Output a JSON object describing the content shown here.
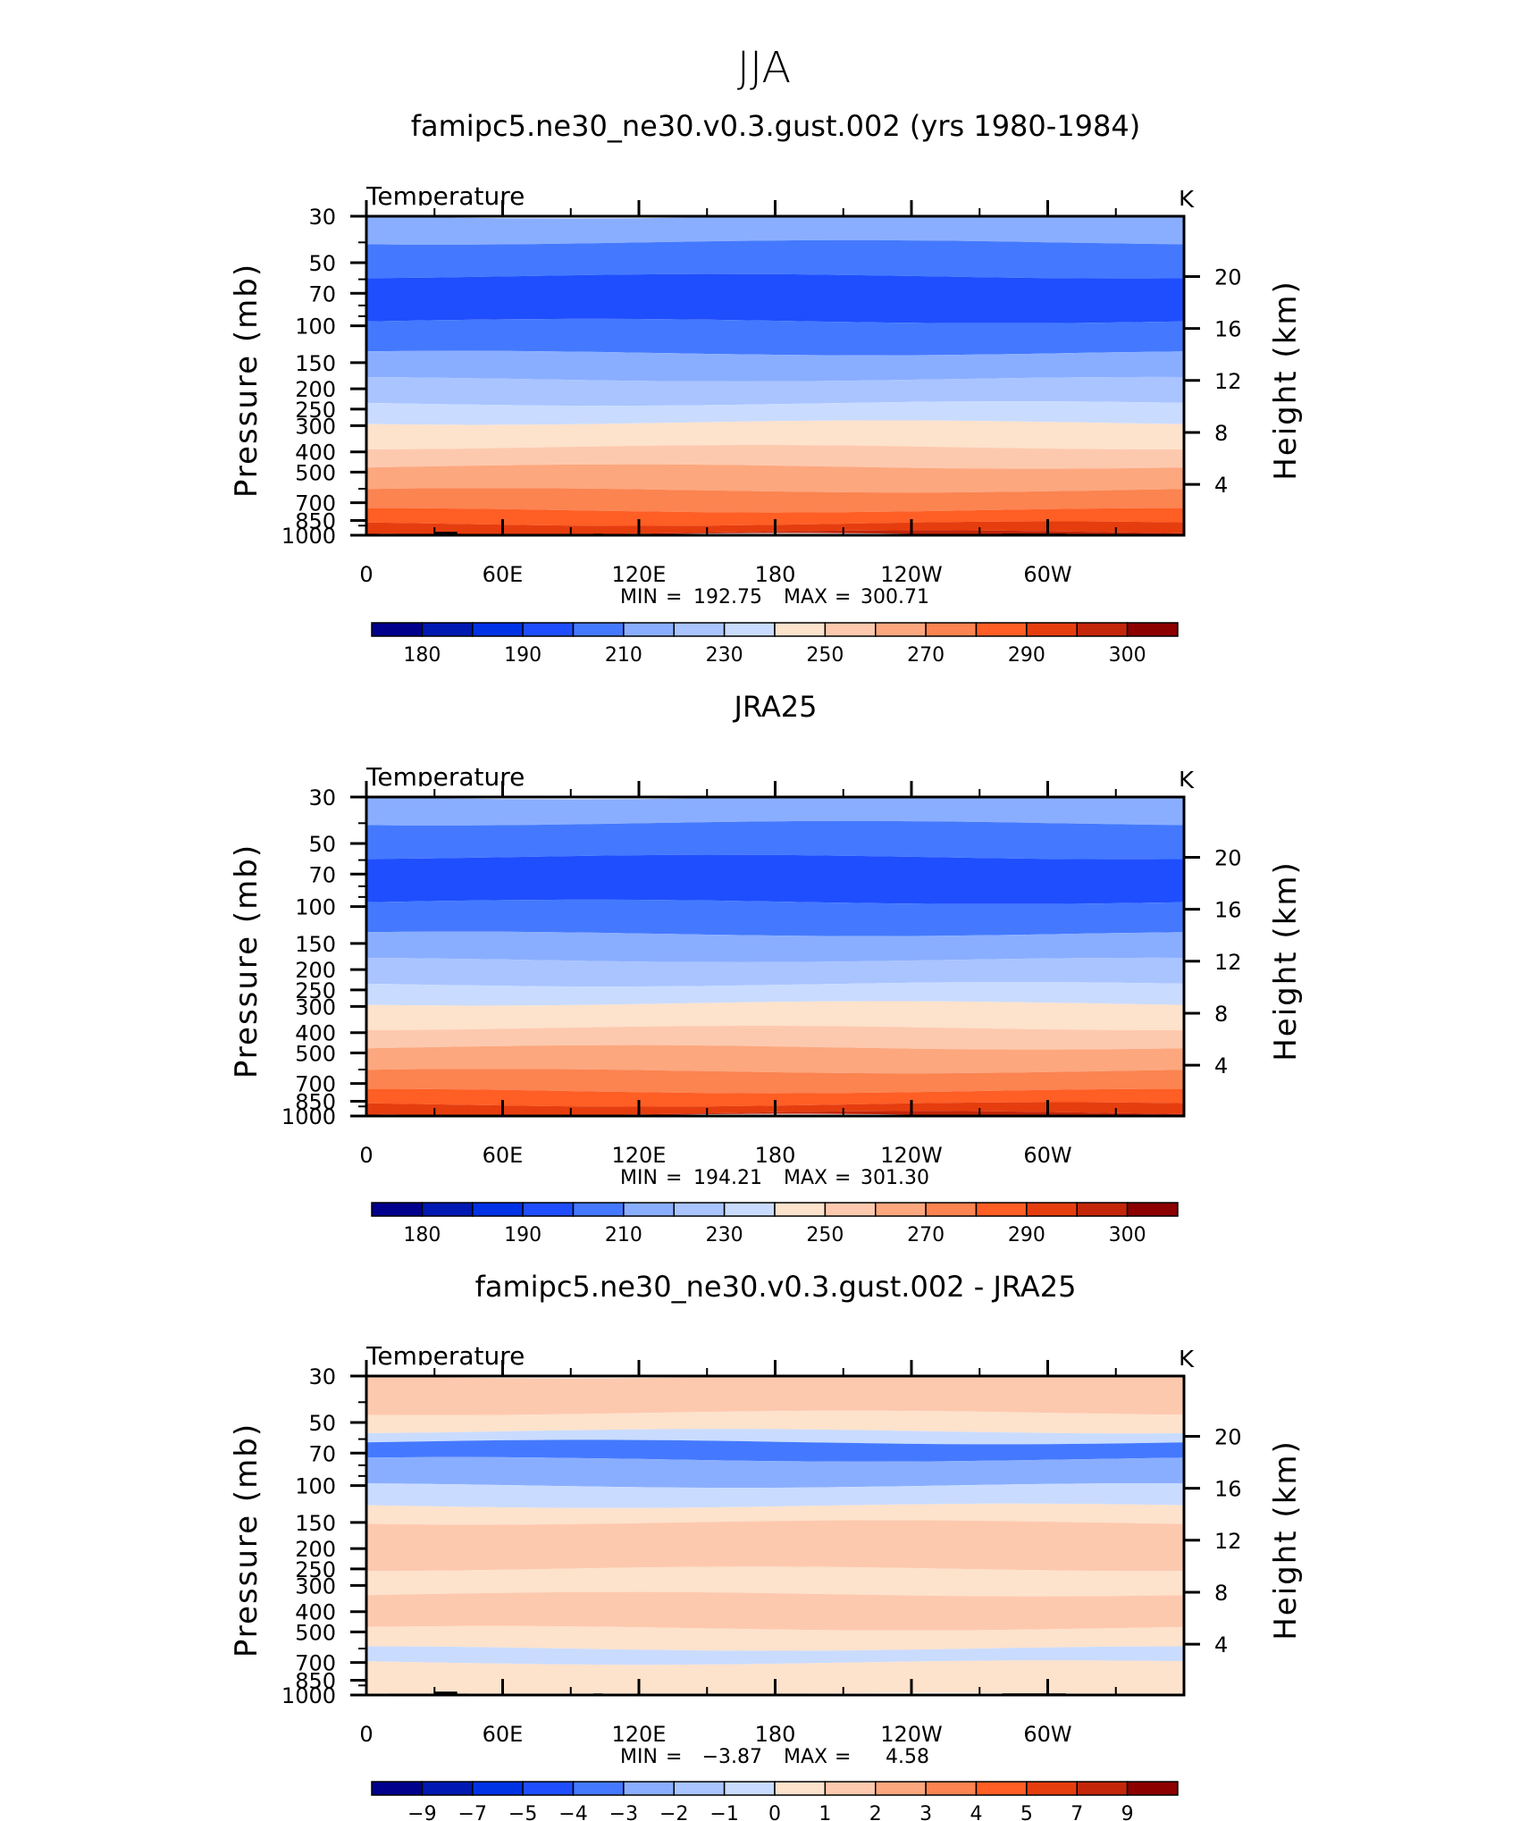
{
  "figure": {
    "title": "JJA"
  },
  "chart_data": [
    {
      "type": "contour",
      "title": "famipc5.ne30_ne30.v0.3.gust.002 (yrs 1980-1984)",
      "variable": "Temperature",
      "units": "K",
      "ylabel": "Pressure (mb)",
      "y2label": "Height (km)",
      "x_ticks": [
        "0",
        "60E",
        "120E",
        "180",
        "120W",
        "60W"
      ],
      "x_range": [
        0,
        360
      ],
      "pressure_ticks": [
        "30",
        "50",
        "70",
        "100",
        "150",
        "200",
        "250",
        "300",
        "400",
        "500",
        "700",
        "850",
        "1000"
      ],
      "height_ticks": [
        "20",
        "16",
        "12",
        "8",
        "4"
      ],
      "min_label": "MIN",
      "min_value": "192.75",
      "max_label": "MAX",
      "max_value": "300.71",
      "colorbar_labels": [
        "180",
        "190",
        "210",
        "230",
        "250",
        "270",
        "290",
        "300"
      ],
      "layer_colors": [
        "#8aaeff",
        "#4479ff",
        "#1f4eff",
        "#4479ff",
        "#8aaeff",
        "#a9c4ff",
        "#c9dcff",
        "#fde2cc",
        "#fdc9ae",
        "#fca77e",
        "#fb8451",
        "#ff5e24",
        "#e63d0f",
        "#c4260a"
      ],
      "layer_bounds_mb": [
        30,
        40,
        58,
        95,
        135,
        180,
        235,
        290,
        380,
        470,
        610,
        760,
        880,
        970,
        1000
      ]
    },
    {
      "type": "contour",
      "title": "JRA25",
      "variable": "Temperature",
      "units": "K",
      "ylabel": "Pressure (mb)",
      "y2label": "Height (km)",
      "x_ticks": [
        "0",
        "60E",
        "120E",
        "180",
        "120W",
        "60W"
      ],
      "x_range": [
        0,
        360
      ],
      "pressure_ticks": [
        "30",
        "50",
        "70",
        "100",
        "150",
        "200",
        "250",
        "300",
        "400",
        "500",
        "700",
        "850",
        "1000"
      ],
      "height_ticks": [
        "20",
        "16",
        "12",
        "8",
        "4"
      ],
      "min_label": "MIN",
      "min_value": "194.21",
      "max_label": "MAX",
      "max_value": "301.30",
      "colorbar_labels": [
        "180",
        "190",
        "210",
        "230",
        "250",
        "270",
        "290",
        "300"
      ],
      "layer_colors": [
        "#8aaeff",
        "#4479ff",
        "#1f4eff",
        "#4479ff",
        "#8aaeff",
        "#a9c4ff",
        "#c9dcff",
        "#fde2cc",
        "#fdc9ae",
        "#fca77e",
        "#fb8451",
        "#ff5e24",
        "#e63d0f",
        "#c4260a"
      ],
      "layer_bounds_mb": [
        30,
        40,
        58,
        95,
        135,
        180,
        235,
        290,
        380,
        470,
        610,
        760,
        880,
        970,
        1000
      ]
    },
    {
      "type": "contour",
      "title": "famipc5.ne30_ne30.v0.3.gust.002 - JRA25",
      "variable": "Temperature",
      "units": "K",
      "ylabel": "Pressure (mb)",
      "y2label": "Height (km)",
      "x_ticks": [
        "0",
        "60E",
        "120E",
        "180",
        "120W",
        "60W"
      ],
      "x_range": [
        0,
        360
      ],
      "pressure_ticks": [
        "30",
        "50",
        "70",
        "100",
        "150",
        "200",
        "250",
        "300",
        "400",
        "500",
        "700",
        "850",
        "1000"
      ],
      "height_ticks": [
        "20",
        "16",
        "12",
        "8",
        "4"
      ],
      "min_label": "MIN",
      "min_value": "−3.87",
      "max_label": "MAX",
      "max_value": "4.58",
      "colorbar_labels": [
        "−9",
        "−7",
        "−5",
        "−4",
        "−3",
        "−2",
        "−1",
        "0",
        "1",
        "2",
        "3",
        "4",
        "5",
        "7",
        "9"
      ],
      "layer_colors": [
        "#fdc9ae",
        "#fde2cc",
        "#c9dcff",
        "#4479ff",
        "#8aaeff",
        "#c9dcff",
        "#fde2cc",
        "#fdc9ae",
        "#fde2cc",
        "#fdc9ae",
        "#fde2cc",
        "#c9dcff",
        "#fde2cc"
      ],
      "layer_bounds_mb": [
        30,
        45,
        55,
        62,
        75,
        100,
        125,
        150,
        250,
        330,
        480,
        600,
        700,
        1000
      ]
    }
  ],
  "colorbar_colors": [
    "#00008c",
    "#0019b2",
    "#0033e6",
    "#1f4eff",
    "#4479ff",
    "#8aaeff",
    "#a9c4ff",
    "#c9dcff",
    "#fde2cc",
    "#fdc9ae",
    "#fca77e",
    "#fb8451",
    "#ff5e24",
    "#e63d0f",
    "#c4260a",
    "#8c0000"
  ],
  "diff_colorbar_colors": [
    "#00008c",
    "#0019b2",
    "#0033e6",
    "#1f4eff",
    "#4479ff",
    "#8aaeff",
    "#a9c4ff",
    "#c9dcff",
    "#fde2cc",
    "#fdc9ae",
    "#fca77e",
    "#fb8451",
    "#ff5e24",
    "#e63d0f",
    "#c4260a",
    "#8c0000"
  ]
}
